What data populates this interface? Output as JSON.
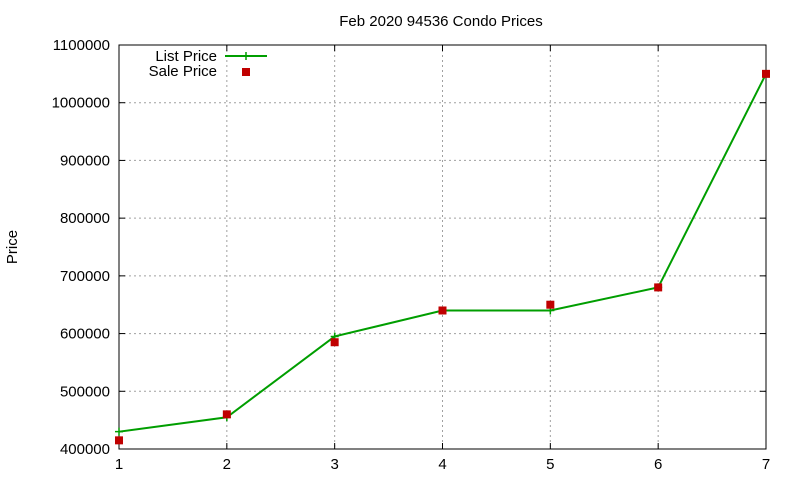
{
  "chart_data": {
    "type": "line",
    "title": "Feb 2020 94536 Condo Prices",
    "xlabel": "",
    "ylabel": "Price",
    "xlim": [
      1,
      7
    ],
    "ylim": [
      400000,
      1100000
    ],
    "x_ticks": [
      "1",
      "2",
      "3",
      "4",
      "5",
      "6",
      "7"
    ],
    "y_ticks": [
      "400000",
      "500000",
      "600000",
      "700000",
      "800000",
      "900000",
      "1000000",
      "1100000"
    ],
    "grid": true,
    "legend_position": "top-left",
    "series": [
      {
        "name": "List Price",
        "style": "line-with-plus-markers",
        "color": "#009e00",
        "x": [
          1,
          2,
          3,
          4,
          5,
          6,
          7
        ],
        "y": [
          430000,
          455000,
          595000,
          640000,
          640000,
          680000,
          1050000
        ]
      },
      {
        "name": "Sale Price",
        "style": "square-markers",
        "color": "#c00000",
        "x": [
          1,
          2,
          3,
          4,
          5,
          6,
          7
        ],
        "y": [
          415000,
          460000,
          585000,
          640000,
          650000,
          680000,
          1050000
        ]
      }
    ]
  }
}
